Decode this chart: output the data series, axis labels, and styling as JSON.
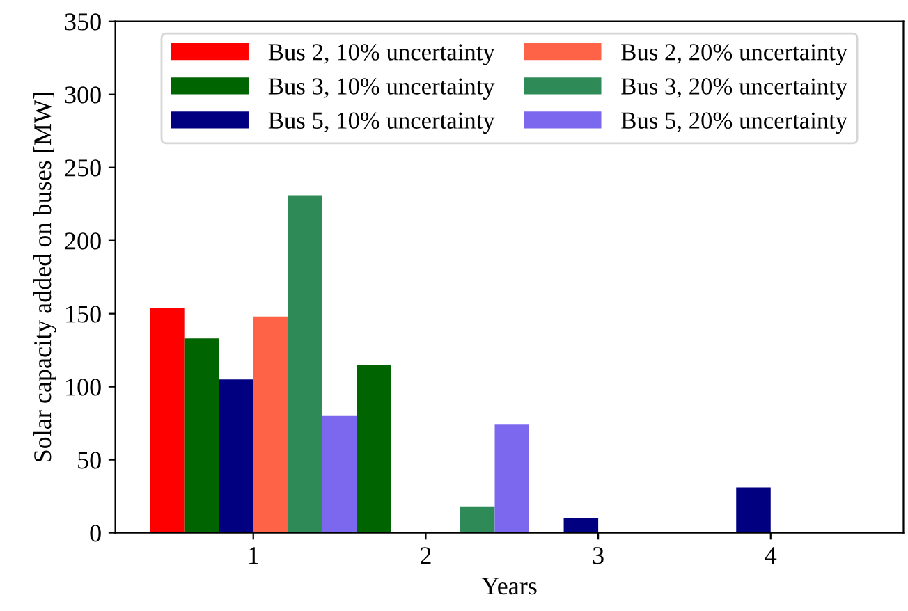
{
  "chart_data": {
    "type": "bar",
    "xlabel": "Years",
    "ylabel": "Solar capacity added on buses [MW]",
    "x": [
      1,
      2,
      3,
      4
    ],
    "series": [
      {
        "name": "Bus 2, 10% uncertainty",
        "color": "#ff0000",
        "values": [
          154,
          0,
          0,
          0
        ]
      },
      {
        "name": "Bus 3, 10% uncertainty",
        "color": "#006400",
        "values": [
          133,
          115,
          0,
          0
        ]
      },
      {
        "name": "Bus 5, 10% uncertainty",
        "color": "#000080",
        "values": [
          105,
          0,
          10,
          31
        ]
      },
      {
        "name": "Bus 2, 20% uncertainty",
        "color": "#ff6347",
        "values": [
          148,
          0,
          0,
          0
        ]
      },
      {
        "name": "Bus 3, 20% uncertainty",
        "color": "#2e8b57",
        "values": [
          231,
          18,
          0,
          0
        ]
      },
      {
        "name": "Bus 5, 20% uncertainty",
        "color": "#7b68ee",
        "values": [
          80,
          74,
          0,
          0
        ]
      }
    ],
    "xlim": [
      0.2,
      4.77
    ],
    "xticks": [
      1,
      2,
      3,
      4
    ],
    "ylim": [
      0,
      350
    ],
    "yticks": [
      0,
      50,
      100,
      150,
      200,
      250,
      300,
      350
    ],
    "grid": false,
    "legend": "top"
  }
}
